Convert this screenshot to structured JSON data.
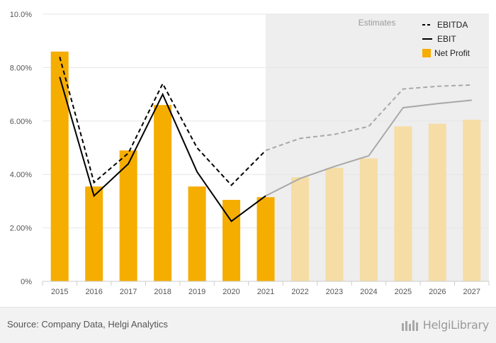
{
  "chart_data": {
    "type": "bar",
    "categories": [
      "2015",
      "2016",
      "2017",
      "2018",
      "2019",
      "2020",
      "2021",
      "2022",
      "2023",
      "2024",
      "2025",
      "2026",
      "2027"
    ],
    "estimates_from": "2022",
    "estimates_label": "Estimates",
    "yticks": [
      "0%",
      "2.00%",
      "4.00%",
      "6.00%",
      "8.00%",
      "10.0%"
    ],
    "ylim": [
      0,
      10
    ],
    "grid": true,
    "legend_position": "top-right",
    "series": [
      {
        "name": "EBITDA",
        "type": "line",
        "style": "dashed",
        "values": [
          8.4,
          3.7,
          4.8,
          7.4,
          5.0,
          3.6,
          4.9,
          5.35,
          5.5,
          5.8,
          7.2,
          7.3,
          7.35
        ]
      },
      {
        "name": "EBIT",
        "type": "line",
        "style": "solid",
        "values": [
          7.65,
          3.2,
          4.4,
          7.0,
          4.1,
          2.25,
          3.2,
          3.85,
          4.3,
          4.7,
          6.5,
          6.65,
          6.78
        ]
      },
      {
        "name": "Net Profit",
        "type": "bar",
        "values": [
          8.6,
          3.55,
          4.9,
          6.6,
          3.55,
          3.05,
          3.15,
          3.9,
          4.25,
          4.6,
          5.8,
          5.9,
          6.05
        ]
      }
    ],
    "colors": {
      "bar_actual": "#f5ad00",
      "bar_estimate": "#f5dda5",
      "line_actual": "#000000",
      "line_estimate": "#a8a8a8",
      "estimate_bg": "#eeeeee",
      "grid": "#e6e6e6"
    }
  },
  "footer": {
    "source": "Source: Company Data, Helgi Analytics",
    "brand": "HelgiLibrary"
  }
}
